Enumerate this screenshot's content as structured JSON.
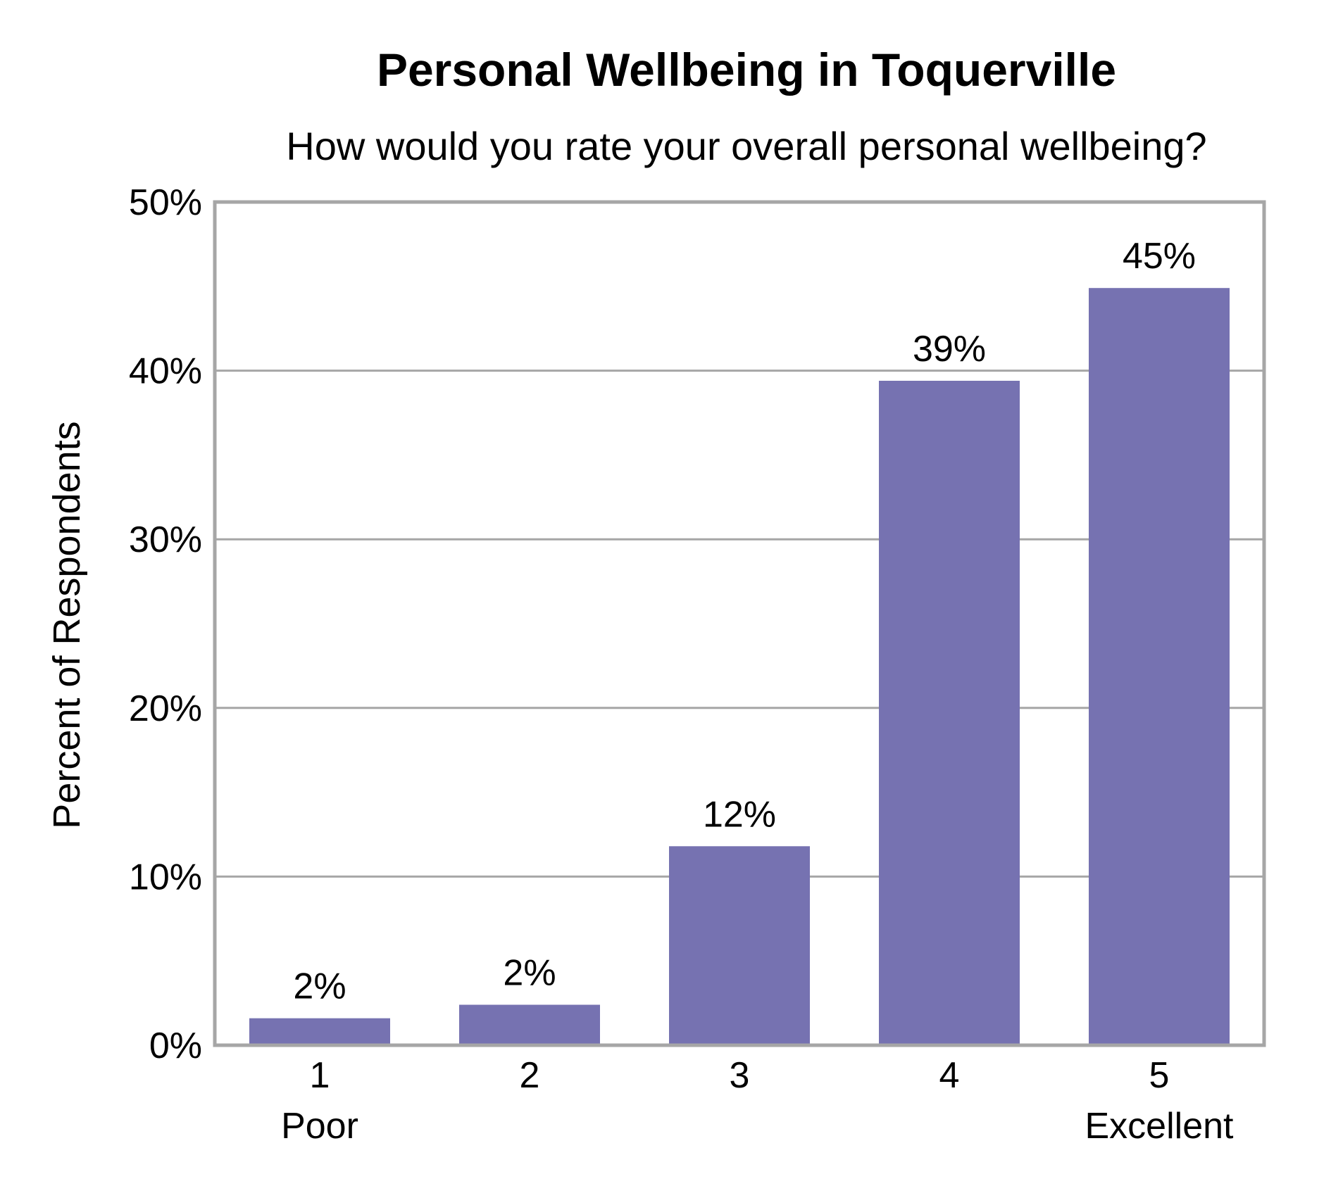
{
  "chart_data": {
    "type": "bar",
    "title": "Personal Wellbeing in Toquerville",
    "subtitle": "How would you rate your overall personal wellbeing?",
    "xlabel": "",
    "ylabel": "Percent of Respondents",
    "categories": [
      "1",
      "2",
      "3",
      "4",
      "5"
    ],
    "category_sublabels": [
      "Poor",
      "",
      "",
      "",
      "Excellent"
    ],
    "values": [
      1.6,
      2.4,
      11.8,
      39.4,
      44.9
    ],
    "data_labels": [
      "2%",
      "2%",
      "12%",
      "39%",
      "45%"
    ],
    "ylim": [
      0,
      50
    ],
    "yticks": [
      0,
      10,
      20,
      30,
      40,
      50
    ],
    "ytick_labels": [
      "0%",
      "10%",
      "20%",
      "30%",
      "40%",
      "50%"
    ],
    "grid": true,
    "legend": "none",
    "colors": {
      "bar": "#7672b1",
      "frame": "#a6a6a6",
      "grid": "#a6a6a6",
      "text": "#000000",
      "background": "#ffffff"
    }
  }
}
